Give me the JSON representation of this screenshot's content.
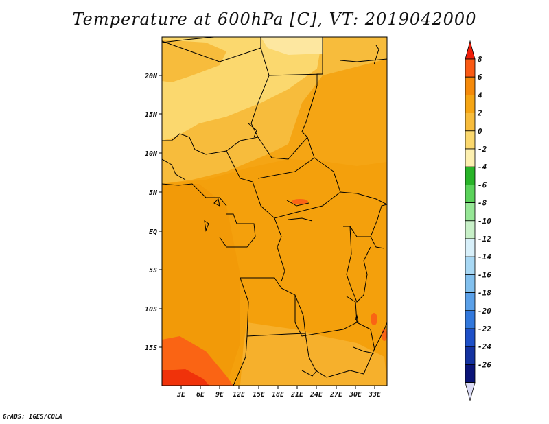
{
  "title": "Temperature at 600hPa [C], VT: 2019042000",
  "credit": "GrADS: IGES/COLA",
  "map": {
    "lat_ticks": [
      "20N",
      "15N",
      "10N",
      "5N",
      "EQ",
      "5S",
      "10S",
      "15S"
    ],
    "lon_ticks": [
      "3E",
      "6E",
      "9E",
      "12E",
      "15E",
      "18E",
      "21E",
      "24E",
      "27E",
      "30E",
      "33E"
    ]
  },
  "colorbar": {
    "labels": [
      "8",
      "6",
      "4",
      "2",
      "0",
      "-2",
      "-4",
      "-6",
      "-8",
      "-10",
      "-12",
      "-14",
      "-16",
      "-18",
      "-20",
      "-22",
      "-24",
      "-26"
    ],
    "colors": [
      "#f01e0a",
      "#fa5a14",
      "#f58a0a",
      "#f5a514",
      "#f7bc3c",
      "#fbd86e",
      "#fdf0b0",
      "#28b428",
      "#5ad25a",
      "#96e696",
      "#c8f0c8",
      "#d8f0fa",
      "#a8d8f4",
      "#82c0ee",
      "#5aa0e8",
      "#3278dc",
      "#1e50c8",
      "#1432a0",
      "#0a1478",
      "#dcdcf6"
    ]
  }
}
